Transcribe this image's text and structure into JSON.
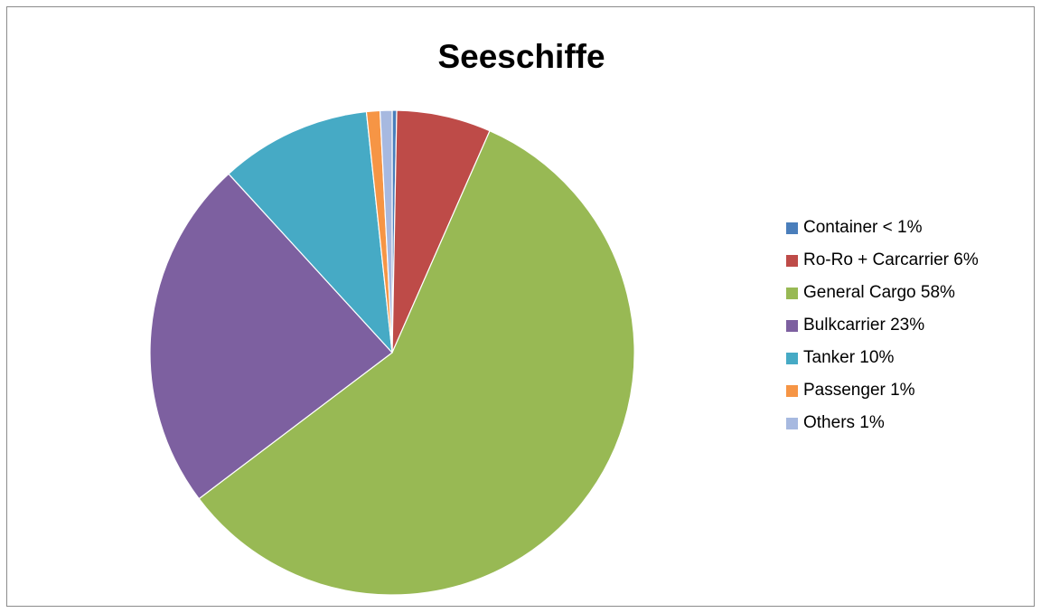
{
  "chart_data": {
    "type": "pie",
    "title": "Seeschiffe",
    "legend_position": "right",
    "slices": [
      {
        "label": "Container < 1%",
        "value": 0.3,
        "color": "#4a7ebb"
      },
      {
        "label": "Ro-Ro + Carcarrier 6%",
        "value": 6.3,
        "color": "#be4b48"
      },
      {
        "label": "General Cargo 58%",
        "value": 58.1,
        "color": "#98b954"
      },
      {
        "label": "Bulkcarrier 23%",
        "value": 23.5,
        "color": "#7d60a0"
      },
      {
        "label": "Tanker 10%",
        "value": 10.1,
        "color": "#46aac5"
      },
      {
        "label": "Passenger 1%",
        "value": 0.9,
        "color": "#f69545"
      },
      {
        "label": "Others 1%",
        "value": 0.8,
        "color": "#a7b9e0"
      }
    ]
  }
}
